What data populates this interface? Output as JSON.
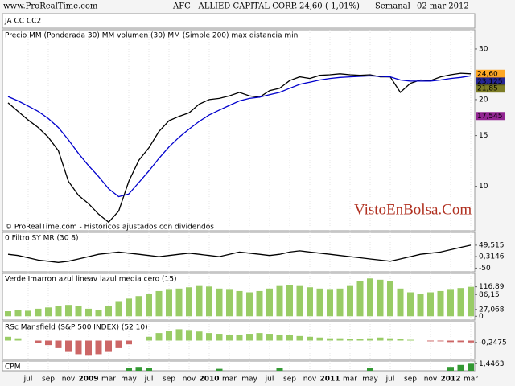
{
  "header": {
    "site": "www.ProRealTime.com",
    "title": "AFC - ALLIED CAPITAL CORP.",
    "price": "24,60",
    "change": "(-1,01%)",
    "period": "Semanal",
    "date": "02 mar 2012"
  },
  "strip_label": "JA CC CC2",
  "watermark": "VistoEnBolsa.Com",
  "footer": "© ProRealTime.com - Históricos ajustados con dividendos",
  "chart_data": [
    {
      "type": "line",
      "title": "Precio MM (Ponderada 30) MM volumen (30) MM (Simple 200) max distancia min",
      "categories": [
        null,
        null,
        "jul",
        null,
        "sep",
        null,
        "nov",
        null,
        "2009",
        null,
        "mar",
        null,
        "may",
        null,
        "jul",
        null,
        "sep",
        null,
        "nov",
        null,
        "2010",
        null,
        "mar",
        null,
        "may",
        null,
        "jul",
        null,
        "sep",
        null,
        "nov",
        null,
        "2011",
        null,
        "mar",
        null,
        "may",
        null,
        "jul",
        null,
        "sep",
        null,
        "nov",
        null,
        "2012",
        null,
        "mar"
      ],
      "log_scale": true,
      "ylim": [
        7,
        35
      ],
      "yticks": [
        30,
        20,
        15,
        10
      ],
      "series": [
        {
          "name": "Precio",
          "color": "#000000",
          "values": [
            19.5,
            18.2,
            17,
            16,
            14.8,
            13.3,
            10.4,
            9.3,
            8.7,
            8.0,
            7.5,
            8.2,
            10.4,
            12.3,
            13.6,
            15.5,
            16.9,
            17.5,
            18.0,
            19.3,
            20,
            20.2,
            20.6,
            21.2,
            20.6,
            20.4,
            21.5,
            21.9,
            23.3,
            24.0,
            23.7,
            24.3,
            24.4,
            24.6,
            24.4,
            24.3,
            24.4,
            24.0,
            24.0,
            21.2,
            22.8,
            23.4,
            23.3,
            24.0,
            24.4,
            24.7,
            24.6
          ]
        },
        {
          "name": "MM (Ponderada 30)",
          "color": "#0000cc",
          "values": [
            20.5,
            19.8,
            19,
            18.2,
            17.2,
            16,
            14.5,
            13,
            11.8,
            10.8,
            9.8,
            9.2,
            9.4,
            10.3,
            11.3,
            12.5,
            13.7,
            14.8,
            15.8,
            16.8,
            17.7,
            18.4,
            19.1,
            19.8,
            20.2,
            20.4,
            20.8,
            21.2,
            21.9,
            22.6,
            23.0,
            23.4,
            23.7,
            23.9,
            24.0,
            24.1,
            24.2,
            24.1,
            24.0,
            23.4,
            23.2,
            23.2,
            23.2,
            23.4,
            23.7,
            23.9,
            24.2
          ]
        }
      ],
      "markers": [
        {
          "value": 24.6,
          "label": "24,60",
          "color": "#ff9900"
        },
        {
          "value": 23.125,
          "label": "23,125",
          "color": "#000080"
        },
        {
          "value": 21.85,
          "label": "21,85",
          "color": "#666600"
        },
        {
          "value": 17.545,
          "label": "17,545",
          "color": "#800080"
        }
      ]
    },
    {
      "type": "line",
      "title": "0 Filtro SY MR (30 8)",
      "ylim": [
        -66,
        105
      ],
      "yticks": [
        {
          "value": 49.515,
          "label": "49,515"
        },
        {
          "value": 0.3146,
          "label": "0,3146"
        },
        -50
      ],
      "series": [
        {
          "name": "Filtro SY",
          "color": "#000000",
          "values": [
            10,
            5,
            -5,
            -15,
            -20,
            -25,
            -20,
            -10,
            0,
            10,
            15,
            20,
            15,
            10,
            5,
            0,
            5,
            10,
            15,
            10,
            5,
            0,
            10,
            20,
            15,
            10,
            5,
            10,
            20,
            25,
            20,
            15,
            10,
            5,
            0,
            -5,
            -10,
            -15,
            -20,
            -10,
            0,
            10,
            15,
            20,
            30,
            40,
            49.5
          ]
        }
      ]
    },
    {
      "type": "bar",
      "title": "Verde Imarron azul lineav lazul media cero (15)",
      "ylim": [
        -15,
        170
      ],
      "yticks": [
        {
          "value": 116.89,
          "label": "116,89"
        },
        {
          "value": 86.15,
          "label": "86,15"
        },
        {
          "value": 27.068,
          "label": "27,068"
        },
        0
      ],
      "series": [
        {
          "name": "Verde",
          "color": "#99cc66",
          "negative_color": "#cc6666",
          "values": [
            20,
            25,
            22,
            30,
            35,
            40,
            45,
            40,
            30,
            25,
            40,
            60,
            70,
            80,
            90,
            100,
            105,
            110,
            115,
            120,
            118,
            110,
            105,
            100,
            95,
            100,
            110,
            120,
            125,
            120,
            115,
            110,
            105,
            110,
            120,
            140,
            150,
            145,
            140,
            110,
            95,
            90,
            95,
            100,
            105,
            112,
            116.89
          ]
        }
      ]
    },
    {
      "type": "bar",
      "title": "RSc Mansfield (S&P 500 INDEX) (52 10)",
      "ylim": [
        -2.5,
        2.5
      ],
      "yticks": [
        {
          "value": -0.2475,
          "label": "-0,2475"
        }
      ],
      "series": [
        {
          "name": "RSc Mansfield",
          "color": "#99cc66",
          "negative_color": "#cc6666",
          "values": [
            0.5,
            0.3,
            0,
            -0.3,
            -0.6,
            -1,
            -1.5,
            -1.8,
            -2,
            -1.8,
            -1.5,
            -1,
            -0.5,
            0,
            0.5,
            1,
            1.3,
            1.5,
            1.4,
            1.2,
            1,
            0.9,
            0.8,
            0.8,
            0.9,
            1,
            0.9,
            0.8,
            0.7,
            0.6,
            0.5,
            0.4,
            0.3,
            0.3,
            0.2,
            0.2,
            0.3,
            0.4,
            0.3,
            0.2,
            0.1,
            0,
            -0.1,
            -0.1,
            -0.2,
            -0.2,
            -0.2475
          ]
        }
      ]
    },
    {
      "type": "bar",
      "title": "CPM",
      "ylim": [
        0,
        2
      ],
      "yticks": [
        {
          "value": 1.4463,
          "label": "1,4463"
        }
      ],
      "series": [
        {
          "name": "CPM",
          "color": "#339933",
          "negative_color": "#cc6666",
          "values": [
            0,
            0,
            0,
            0,
            0,
            0,
            0,
            0,
            0,
            0,
            0,
            0,
            0.6,
            0.8,
            0.5,
            0,
            0,
            0,
            0,
            0,
            0,
            0.4,
            0,
            0,
            0,
            0,
            0,
            0.5,
            0,
            0,
            0,
            0,
            0,
            0,
            0,
            0,
            0.6,
            0,
            0,
            0,
            0,
            0,
            0,
            0,
            0.8,
            1.2,
            1.4463
          ]
        }
      ]
    }
  ]
}
